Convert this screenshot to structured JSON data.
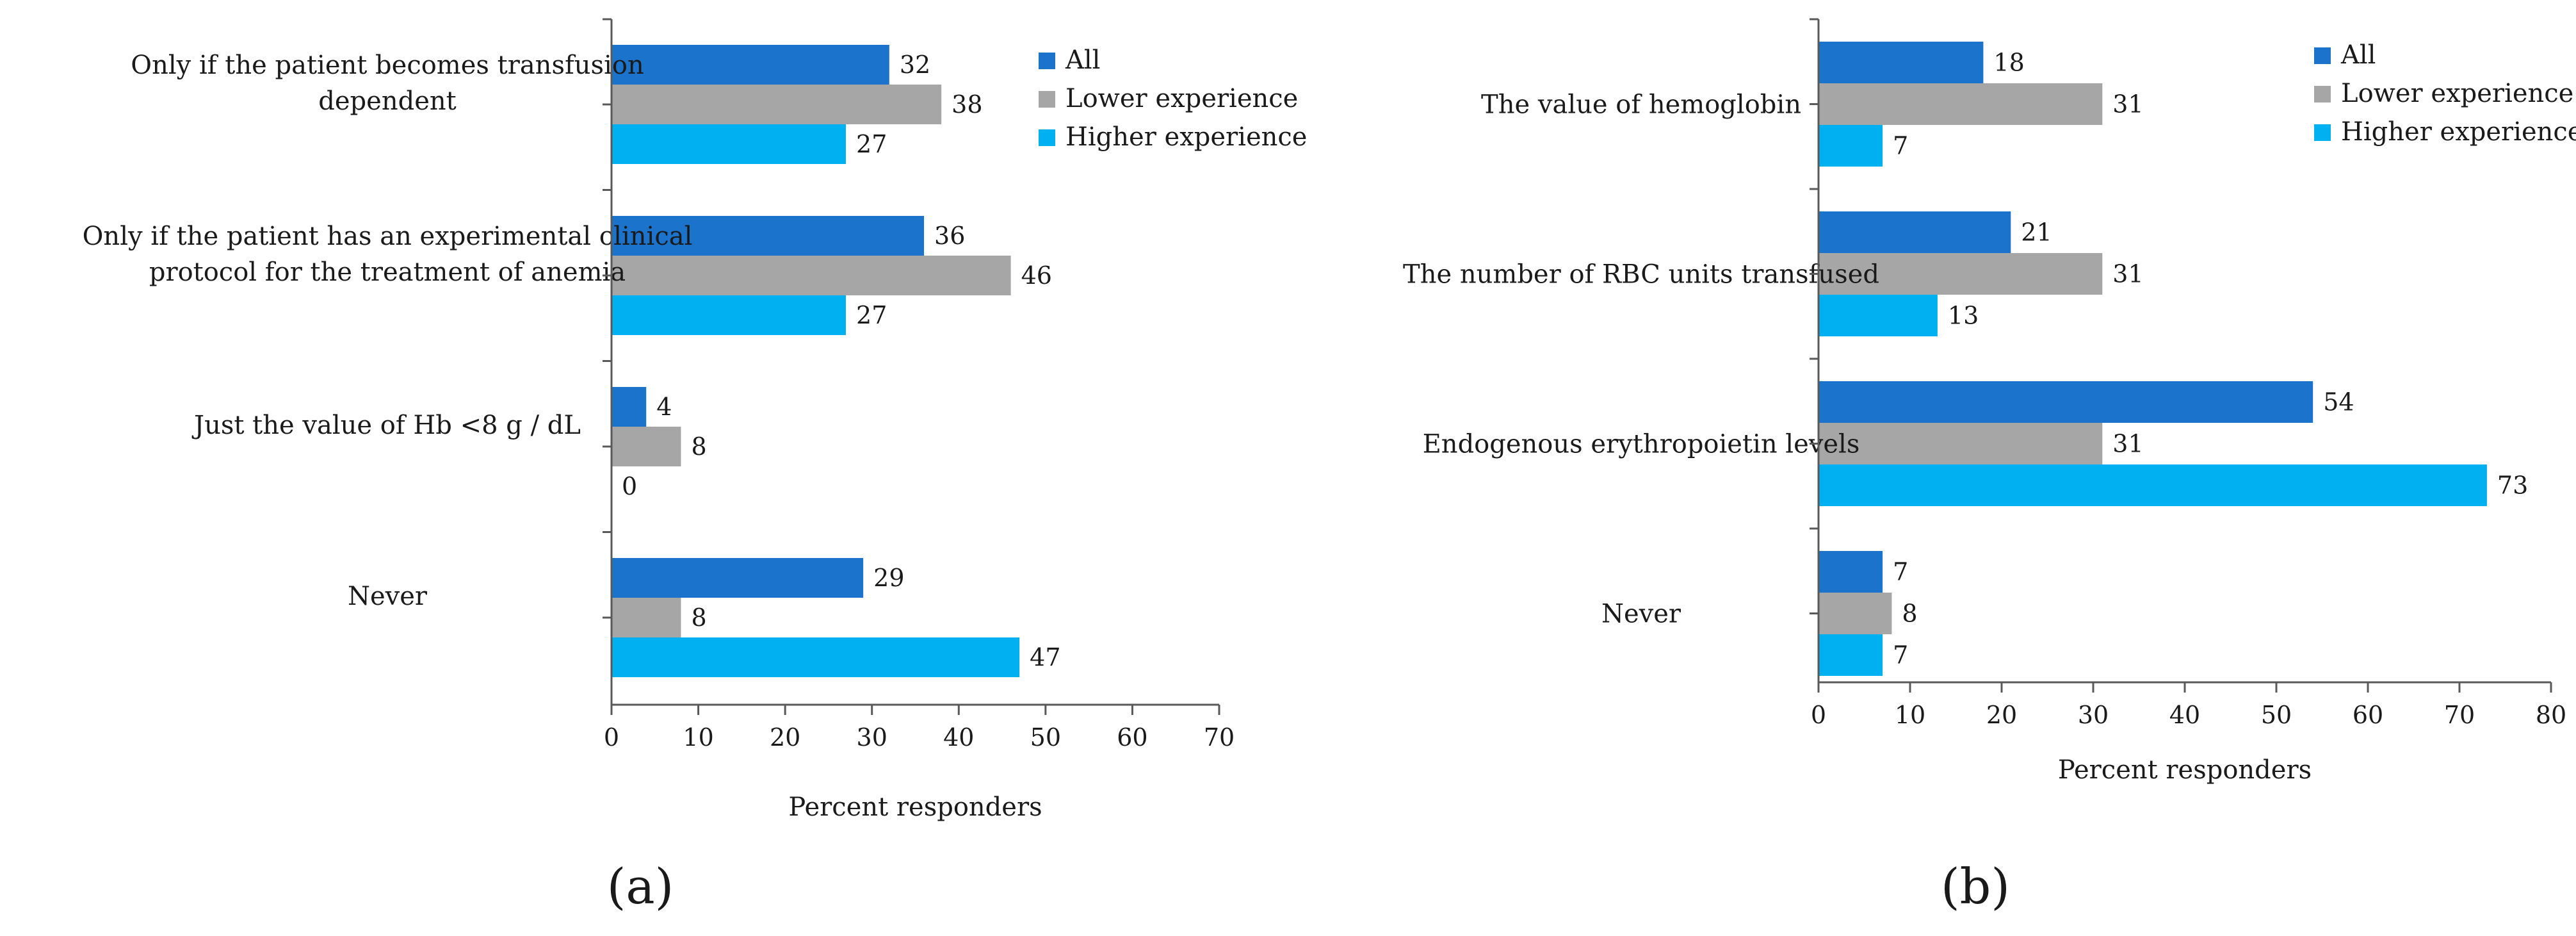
{
  "colors": {
    "All": "#1b73cc",
    "Lower experience": "#a6a6a6",
    "Higher experience": "#00b0f0"
  },
  "chart_data": [
    {
      "type": "bar",
      "orientation": "horizontal",
      "panel_label": "(a)",
      "categories": [
        [
          "Only if the patient becomes transfusion",
          "dependent"
        ],
        [
          "Only if the patient has an experimental clinical",
          "protocol for the treatment of anemia"
        ],
        [
          "Just the value of Hb <8 g / dL"
        ],
        [
          "Never"
        ]
      ],
      "series": [
        {
          "name": "All",
          "values": [
            32,
            36,
            4,
            29
          ]
        },
        {
          "name": "Lower experience",
          "values": [
            38,
            46,
            8,
            8
          ]
        },
        {
          "name": "Higher experience",
          "values": [
            27,
            27,
            0,
            47
          ]
        }
      ],
      "xlabel": "Percent responders",
      "xlim": [
        0,
        70
      ],
      "xticks": [
        0,
        10,
        20,
        30,
        40,
        50,
        60,
        70
      ],
      "legend": "top-right",
      "grid": false
    },
    {
      "type": "bar",
      "orientation": "horizontal",
      "panel_label": "(b)",
      "categories": [
        [
          "The value of hemoglobin"
        ],
        [
          "The number of RBC units transfused"
        ],
        [
          "Endogenous erythropoietin levels"
        ],
        [
          "Never"
        ]
      ],
      "series": [
        {
          "name": "All",
          "values": [
            18,
            21,
            54,
            7
          ]
        },
        {
          "name": "Lower experience",
          "values": [
            31,
            31,
            31,
            8
          ]
        },
        {
          "name": "Higher experience",
          "values": [
            7,
            13,
            73,
            7
          ]
        }
      ],
      "xlabel": "Percent responders",
      "xlim": [
        0,
        80
      ],
      "xticks": [
        0,
        10,
        20,
        30,
        40,
        50,
        60,
        70,
        80
      ],
      "legend": "top-right",
      "grid": false
    }
  ]
}
